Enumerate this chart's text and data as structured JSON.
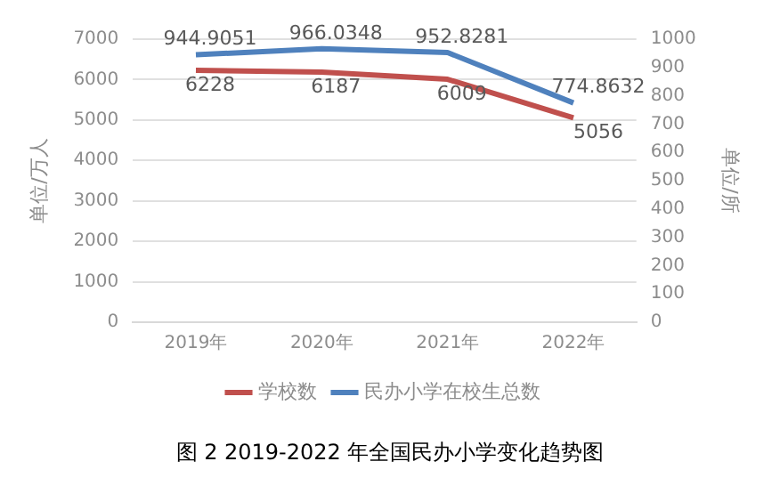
{
  "chart_data": {
    "type": "line",
    "categories": [
      "2019年",
      "2020年",
      "2021年",
      "2022年"
    ],
    "series": [
      {
        "name": "学校数",
        "color": "#c0504d",
        "values": [
          6228,
          6187,
          6009,
          5056
        ]
      },
      {
        "name": "民办小学在校生总数",
        "color": "#4f81bd",
        "values": [
          944.9051,
          966.0348,
          952.8281,
          774.8632
        ],
        "axis": "y2"
      }
    ],
    "ylabel": "单位/万人",
    "y2label": "单位/所",
    "ylim": [
      0,
      7000
    ],
    "yticks": [
      0,
      1000,
      2000,
      3000,
      4000,
      5000,
      6000,
      7000
    ],
    "y2lim": [
      0,
      1000
    ],
    "y2ticks": [
      0,
      100,
      200,
      300,
      400,
      500,
      600,
      700,
      800,
      900,
      1000
    ],
    "grid": "y",
    "legend": "bottom",
    "data_labels": true,
    "marker": "none",
    "line_style": "solid",
    "annotations": [
      "图 2 2019-2022 年全国民办小学变化趋势图"
    ]
  }
}
